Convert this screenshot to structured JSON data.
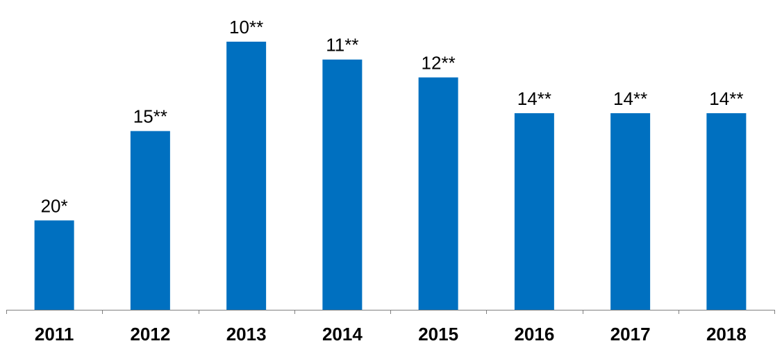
{
  "chart_data": {
    "type": "bar",
    "title": "",
    "xlabel": "",
    "ylabel": "",
    "categories": [
      "2011",
      "2012",
      "2013",
      "2014",
      "2015",
      "2016",
      "2017",
      "2018"
    ],
    "values": [
      5,
      10,
      15,
      14,
      13,
      11,
      11,
      11
    ],
    "data_labels": [
      "20*",
      "15**",
      "10**",
      "11**",
      "12**",
      "14**",
      "14**",
      "14**"
    ],
    "ylim": [
      0,
      15
    ],
    "grid": false,
    "legend": "none",
    "bar_color": "#0070c0"
  }
}
